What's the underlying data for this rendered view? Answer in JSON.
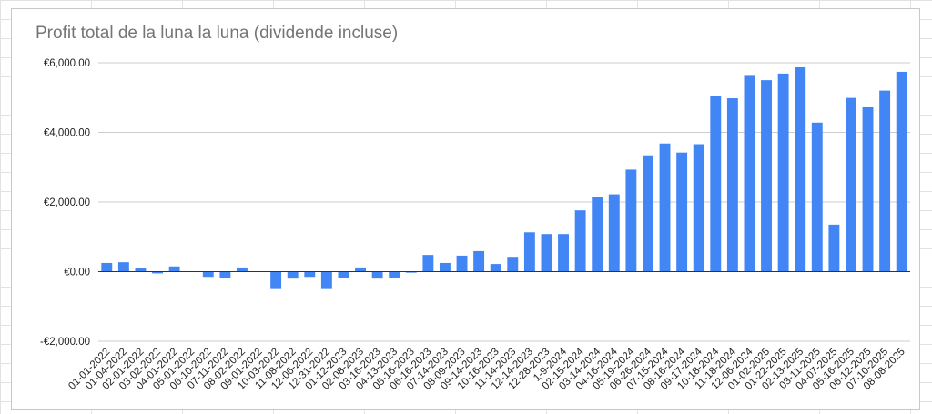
{
  "chart_data": {
    "type": "bar",
    "title": "Profit total de la luna la luna (dividende incluse)",
    "xlabel": "",
    "ylabel": "",
    "ylim": [
      -2000,
      6000
    ],
    "yticks": [
      6000,
      4000,
      2000,
      0,
      -2000
    ],
    "ytick_labels": [
      "€6,000.00",
      "€4,000.00",
      "€2,000.00",
      "€0.00",
      "-€2,000.00"
    ],
    "grid": true,
    "legend": "none",
    "bar_color": "#4285f4",
    "categories": [
      "01-01-2022",
      "01-04-2022",
      "02-01-2022",
      "03-02-2022",
      "04-01-2022",
      "05-01-2022",
      "06-10-2022",
      "07-11-2022",
      "08-02-2022",
      "09-01-2022",
      "10-03-2022",
      "11-08-2022",
      "12-06-2022",
      "12-31-2022",
      "01-12-2023",
      "02-08-2023",
      "03-16-2023",
      "04-13-2023",
      "05-16-2023",
      "06-16-2023",
      "07-14-2023",
      "08-09-2023",
      "09-14-2023",
      "10-16-2023",
      "11-14-2023",
      "12-14-2023",
      "12-28-2023",
      "1-9-2024",
      "02-15-2024",
      "03-14-2024",
      "04-16-2024",
      "05-19-2024",
      "06-26-2024",
      "07-15-2024",
      "08-16-2024",
      "09-17-2024",
      "10-18-2024",
      "11-18-2024",
      "12-06-2024",
      "01-02-2025",
      "01-22-2025",
      "02-13-2025",
      "03-11-2025",
      "04-07-2025",
      "05-16-2025",
      "06-12-2025",
      "07-10-2025",
      "08-08-2025"
    ],
    "values": [
      250,
      270,
      100,
      -50,
      150,
      0,
      -150,
      -180,
      120,
      0,
      -500,
      -200,
      -150,
      -500,
      -170,
      120,
      -200,
      -180,
      -30,
      480,
      250,
      460,
      590,
      220,
      400,
      1130,
      1080,
      1080,
      1760,
      2150,
      2220,
      2930,
      3340,
      3680,
      3420,
      3660,
      5040,
      4980,
      5650,
      5500,
      5690,
      5870,
      4280,
      1350,
      4990,
      4720,
      5200,
      5740
    ]
  }
}
